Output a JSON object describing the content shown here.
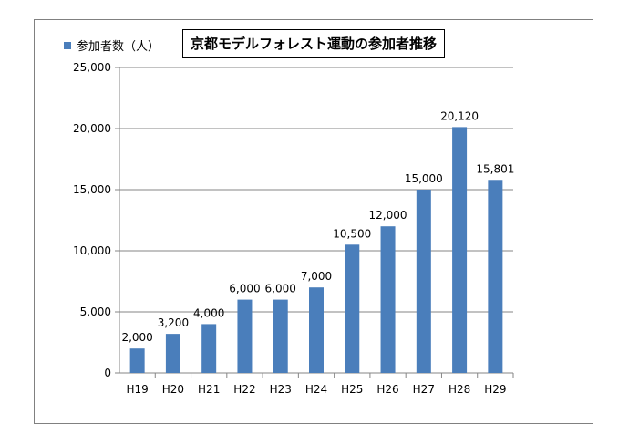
{
  "chart_data": {
    "type": "bar",
    "title": "京都モデルフォレスト運動の参加者推移",
    "xlabel": "",
    "ylabel": "",
    "categories": [
      "H19",
      "H20",
      "H21",
      "H22",
      "H23",
      "H24",
      "H25",
      "H26",
      "H27",
      "H28",
      "H29"
    ],
    "series": [
      {
        "name": "参加者数（人）",
        "values": [
          2000,
          3200,
          4000,
          6000,
          6000,
          7000,
          10500,
          12000,
          15000,
          20120,
          15801
        ]
      }
    ],
    "data_labels": [
      "2,000",
      "3,200",
      "4,000",
      "6,000",
      "6,000",
      "7,000",
      "10,500",
      "12,000",
      "15,000",
      "20,120",
      "15,801"
    ],
    "y_ticks": [
      0,
      5000,
      10000,
      15000,
      20000,
      25000
    ],
    "y_tick_labels": [
      "0",
      "5,000",
      "10,000",
      "15,000",
      "20,000",
      "25,000"
    ],
    "ylim": [
      0,
      25000
    ],
    "grid": true,
    "legend_position": "top-left",
    "colors": {
      "bar": "#4a7ebb",
      "grid": "#868686",
      "axis": "#868686"
    }
  }
}
